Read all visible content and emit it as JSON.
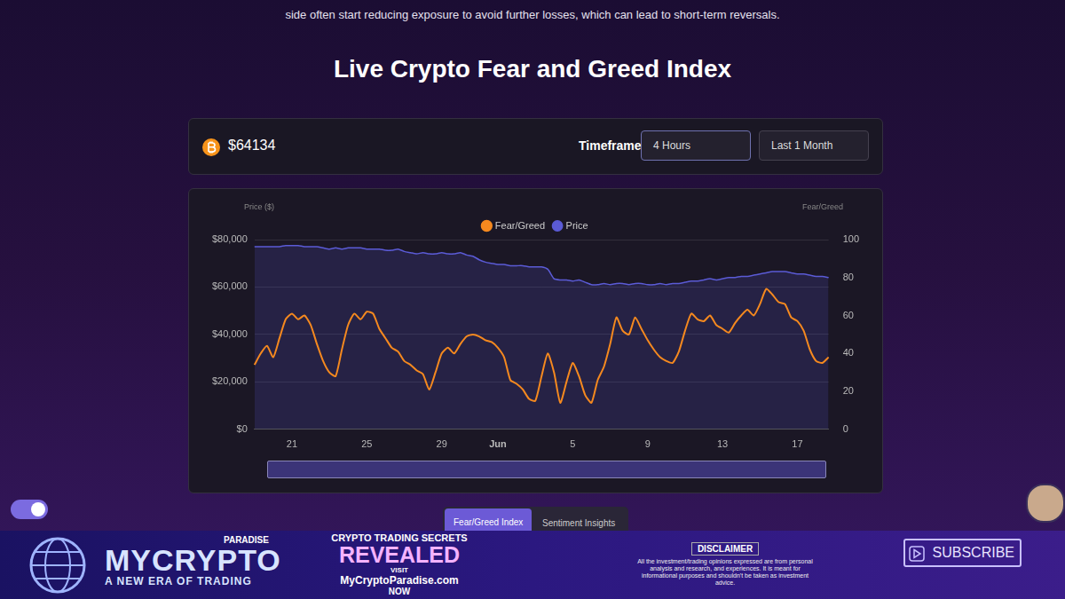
{
  "page": {
    "intro_text": "side often start reducing exposure to avoid further losses, which can lead to short-term reversals.",
    "title": "Live Crypto Fear and Greed Index",
    "header": {
      "price": "$64134",
      "timeframe_label": "Timeframe",
      "timeframe": "4 Hours",
      "period": "Last 1 Month"
    },
    "tabs": [
      "Fear/Greed Index",
      "Sentiment Insights"
    ],
    "banner": {
      "brand": "MYCRYPTO",
      "brand_small": "PARADISE",
      "tagline": "A NEW ERA OF TRADING",
      "promo": [
        "CRYPTO TRADING SECRETS",
        "REVEALED",
        "VISIT",
        "MyCryptoParadise.com",
        "NOW"
      ],
      "disclaimer_title": "DISCLAIMER",
      "disclaimer_text": "All the investment/trading opinions expressed are from personal analysis and research, and experiences. It is meant for informational purposes and shouldn't be taken as investment advice.",
      "button": "SUBSCRIBE"
    }
  },
  "chart_data": {
    "type": "line",
    "y_label": "Price ($)",
    "y2_label": "Fear/Greed",
    "categories": [
      null,
      null,
      null,
      null,
      null,
      null,
      "21",
      null,
      null,
      null,
      null,
      null,
      null,
      null,
      null,
      null,
      null,
      null,
      "25",
      null,
      null,
      null,
      null,
      null,
      null,
      null,
      null,
      null,
      null,
      null,
      "29",
      null,
      null,
      null,
      null,
      null,
      null,
      null,
      null,
      "Jun",
      null,
      null,
      null,
      null,
      null,
      null,
      null,
      null,
      null,
      null,
      null,
      "5",
      null,
      null,
      null,
      null,
      null,
      null,
      null,
      null,
      null,
      null,
      null,
      "9",
      null,
      null,
      null,
      null,
      null,
      null,
      null,
      null,
      null,
      null,
      null,
      "13",
      null,
      null,
      null,
      null,
      null,
      null,
      null,
      null,
      null,
      null,
      null,
      "17",
      null,
      null,
      null,
      null,
      null
    ],
    "series": [
      {
        "name": "Price",
        "color": "#5b5bd6",
        "axis": "y",
        "values": [
          77000,
          77000,
          77000,
          77000,
          77000,
          77500,
          77500,
          77500,
          77000,
          77000,
          77000,
          76500,
          76000,
          76500,
          76000,
          76500,
          76500,
          76500,
          76000,
          76000,
          76000,
          75500,
          75500,
          76000,
          75000,
          74500,
          74000,
          74500,
          74000,
          74000,
          74500,
          74000,
          74000,
          74500,
          73500,
          73000,
          71500,
          70500,
          70000,
          69500,
          69500,
          69000,
          69000,
          69000,
          68500,
          68500,
          68500,
          67500,
          63500,
          63000,
          63000,
          62500,
          63000,
          62000,
          61000,
          61000,
          61500,
          61000,
          61500,
          61500,
          61000,
          61500,
          61500,
          61000,
          61000,
          61500,
          61000,
          61500,
          61500,
          62000,
          62500,
          62500,
          63000,
          63500,
          63000,
          63500,
          64000,
          64000,
          64500,
          64500,
          65000,
          65500,
          66000,
          66500,
          66500,
          66500,
          66000,
          65500,
          65500,
          65000,
          64500,
          64500,
          64000
        ]
      },
      {
        "name": "Fear/Greed",
        "color": "#f5891f",
        "axis": "y2",
        "values": [
          34,
          40,
          44,
          38,
          48,
          58,
          61,
          58,
          60,
          55,
          45,
          36,
          30,
          28,
          42,
          55,
          61,
          58,
          62,
          61,
          53,
          48,
          43,
          41,
          36,
          34,
          31,
          29,
          21,
          30,
          40,
          43,
          40,
          45,
          49,
          50,
          49,
          47,
          46,
          43,
          38,
          26,
          24,
          21,
          16,
          15,
          28,
          40,
          30,
          14,
          25,
          35,
          28,
          18,
          14,
          26,
          33,
          45,
          59,
          52,
          50,
          59,
          53,
          47,
          42,
          38,
          36,
          35,
          41,
          52,
          61,
          58,
          57,
          60,
          55,
          53,
          51,
          56,
          60,
          63,
          60,
          66,
          74,
          71,
          67,
          66,
          59,
          57,
          52,
          42,
          36,
          35,
          38
        ]
      }
    ],
    "ylim": [
      0,
      80000
    ],
    "yticks": [
      {
        "value": 0,
        "label": "$0"
      },
      {
        "value": 20000,
        "label": "$20,000"
      },
      {
        "value": 40000,
        "label": "$40,000"
      },
      {
        "value": 60000,
        "label": "$60,000"
      },
      {
        "value": 80000,
        "label": "$80,000"
      }
    ],
    "y2lim": [
      0,
      100
    ],
    "y2ticks": [
      0,
      20,
      40,
      60,
      80,
      100
    ],
    "grid": true,
    "legend": "top"
  }
}
